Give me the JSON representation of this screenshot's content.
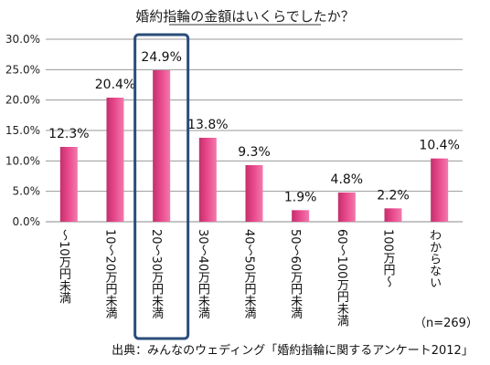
{
  "chart_data": {
    "type": "bar",
    "title": "婚約指輪の金額はいくらでしたか？",
    "categories": [
      "～10万円未満",
      "10～20万円未満",
      "20～30万円未満",
      "30～40万円未満",
      "40～50万円未満",
      "50～60万円未満",
      "60～100万円未満",
      "100万円～",
      "わからない"
    ],
    "values": [
      12.3,
      20.4,
      24.9,
      13.8,
      9.3,
      1.9,
      4.8,
      2.2,
      10.4
    ],
    "data_labels": [
      "12.3%",
      "20.4%",
      "24.9%",
      "13.8%",
      "9.3%",
      "1.9%",
      "4.8%",
      "2.2%",
      "10.4%"
    ],
    "y_ticks": [
      "0.0%",
      "5.0%",
      "10.0%",
      "15.0%",
      "20.0%",
      "25.0%",
      "30.0%"
    ],
    "ylim": [
      0,
      30
    ],
    "grid": true,
    "highlight_category": "20～30万円未満",
    "annotations": [
      "（n=269）"
    ],
    "source": "出典：みんなのウェディング「婚約指輪に関するアンケート2012」",
    "xlabel": "",
    "ylabel": ""
  },
  "colors": {
    "bar": "#e8478b",
    "highlight_border": "#2a4d7a",
    "grid": "#9a9a9a"
  }
}
